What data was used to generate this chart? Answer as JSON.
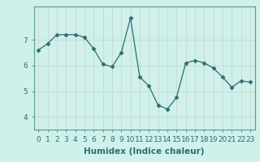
{
  "x": [
    0,
    1,
    2,
    3,
    4,
    5,
    6,
    7,
    8,
    9,
    10,
    11,
    12,
    13,
    14,
    15,
    16,
    17,
    18,
    19,
    20,
    21,
    22,
    23
  ],
  "y": [
    6.6,
    6.85,
    7.2,
    7.2,
    7.2,
    7.1,
    6.65,
    6.05,
    5.95,
    6.5,
    7.85,
    5.55,
    5.2,
    4.45,
    4.3,
    4.75,
    6.1,
    6.2,
    6.1,
    5.9,
    5.55,
    5.15,
    5.4,
    5.35
  ],
  "line_color": "#2d6e6e",
  "marker": "D",
  "marker_size": 2.5,
  "bg_color": "#cff0eb",
  "grid_color": "#c8d8d0",
  "xlabel": "Humidex (Indice chaleur)",
  "xlim": [
    -0.5,
    23.5
  ],
  "ylim": [
    3.5,
    8.3
  ],
  "yticks": [
    4,
    5,
    6,
    7
  ],
  "xticks": [
    0,
    1,
    2,
    3,
    4,
    5,
    6,
    7,
    8,
    9,
    10,
    11,
    12,
    13,
    14,
    15,
    16,
    17,
    18,
    19,
    20,
    21,
    22,
    23
  ],
  "xlabel_fontsize": 7.5,
  "tick_fontsize": 6.5,
  "line_width": 0.9,
  "spine_color": "#5a9a8a"
}
